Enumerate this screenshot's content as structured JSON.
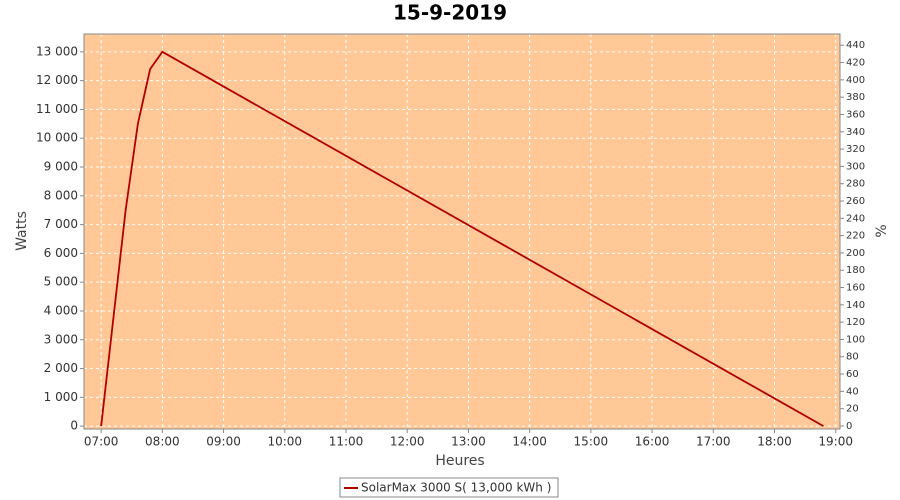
{
  "chart_data": {
    "type": "line",
    "title": "15-9-2019",
    "x_label": "Heures",
    "y_label": "Watts",
    "y2_label": "%",
    "x": [
      7.0,
      7.4,
      7.6,
      7.8,
      8.0,
      18.8
    ],
    "series": [
      {
        "name": "SolarMax 3000 S( 13,000 kWh )",
        "color": "#b00000",
        "values": [
          0,
          7500,
          10500,
          12400,
          13000,
          0
        ]
      }
    ],
    "xlim": [
      6.72,
      19.07
    ],
    "xticks": [
      {
        "value": 7,
        "label": "07:00"
      },
      {
        "value": 8,
        "label": "08:00"
      },
      {
        "value": 9,
        "label": "09:00"
      },
      {
        "value": 10,
        "label": "10:00"
      },
      {
        "value": 11,
        "label": "11:00"
      },
      {
        "value": 12,
        "label": "12:00"
      },
      {
        "value": 13,
        "label": "13:00"
      },
      {
        "value": 14,
        "label": "14:00"
      },
      {
        "value": 15,
        "label": "15:00"
      },
      {
        "value": 16,
        "label": "16:00"
      },
      {
        "value": 17,
        "label": "17:00"
      },
      {
        "value": 18,
        "label": "18:00"
      },
      {
        "value": 19,
        "label": "19:00"
      }
    ],
    "ylim": [
      -100,
      13620
    ],
    "yticks": [
      0,
      {
        "value": 1000,
        "label": "1 000"
      },
      {
        "value": 2000,
        "label": "2 000"
      },
      {
        "value": 3000,
        "label": "3 000"
      },
      {
        "value": 4000,
        "label": "4 000"
      },
      {
        "value": 5000,
        "label": "5 000"
      },
      {
        "value": 6000,
        "label": "6 000"
      },
      {
        "value": 7000,
        "label": "7 000"
      },
      {
        "value": 8000,
        "label": "8 000"
      },
      {
        "value": 9000,
        "label": "9 000"
      },
      {
        "value": 10000,
        "label": "10 000"
      },
      {
        "value": 11000,
        "label": "11 000"
      },
      {
        "value": 12000,
        "label": "12 000"
      },
      {
        "value": 13000,
        "label": "13 000"
      }
    ],
    "y2lim": [
      -3.5,
      453
    ],
    "y2ticks": [
      0,
      20,
      40,
      60,
      80,
      100,
      120,
      140,
      160,
      180,
      200,
      220,
      240,
      260,
      280,
      300,
      320,
      340,
      360,
      380,
      400,
      420,
      440
    ],
    "grid": true,
    "background": "#ffc896"
  }
}
